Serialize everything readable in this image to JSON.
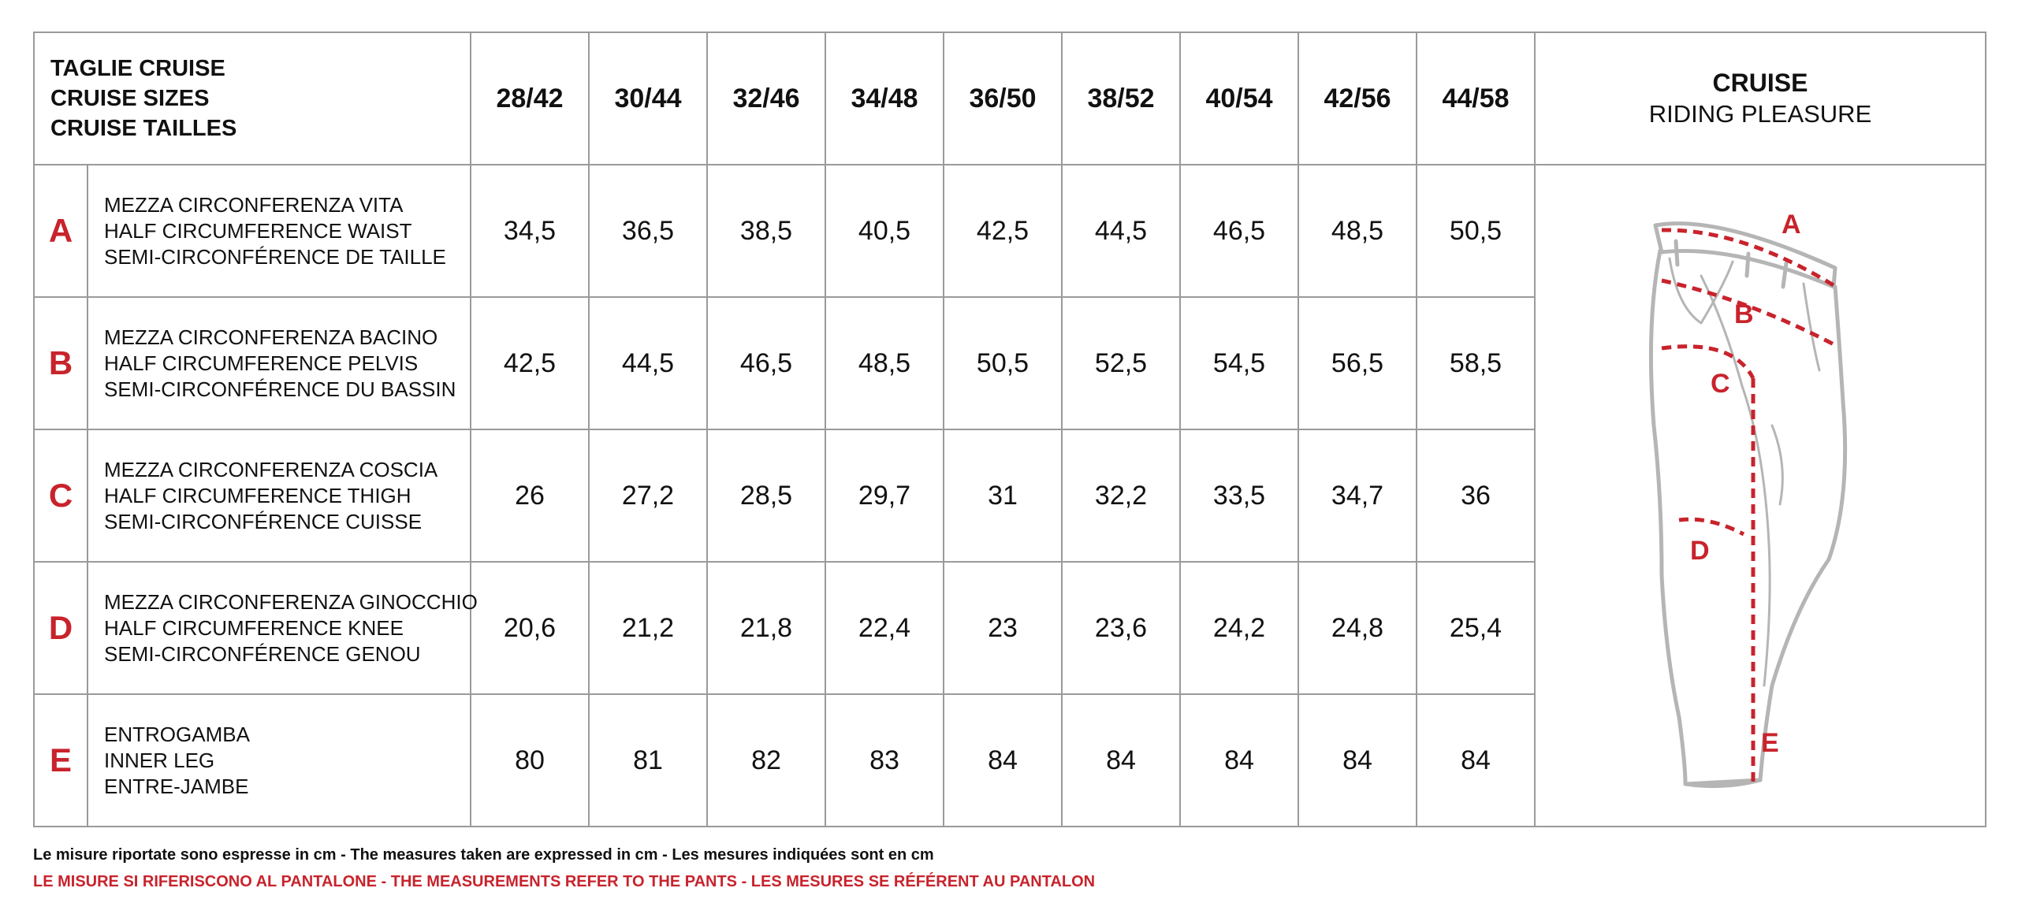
{
  "header": {
    "title_lines": [
      "TAGLIE CRUISE",
      "CRUISE SIZES",
      "CRUISE TAILLES"
    ],
    "sizes": [
      "28/42",
      "30/44",
      "32/46",
      "34/48",
      "36/50",
      "38/52",
      "40/54",
      "42/56",
      "44/58"
    ],
    "brand_name": "CRUISE",
    "brand_tagline": "RIDING PLEASURE"
  },
  "rows": [
    {
      "letter": "A",
      "labels": [
        "MEZZA CIRCONFERENZA VITA",
        "HALF CIRCUMFERENCE WAIST",
        "SEMI-CIRCONFÉRENCE DE TAILLE"
      ],
      "values": [
        "34,5",
        "36,5",
        "38,5",
        "40,5",
        "42,5",
        "44,5",
        "46,5",
        "48,5",
        "50,5"
      ]
    },
    {
      "letter": "B",
      "labels": [
        "MEZZA CIRCONFERENZA BACINO",
        "HALF CIRCUMFERENCE PELVIS",
        "SEMI-CIRCONFÉRENCE DU BASSIN"
      ],
      "values": [
        "42,5",
        "44,5",
        "46,5",
        "48,5",
        "50,5",
        "52,5",
        "54,5",
        "56,5",
        "58,5"
      ]
    },
    {
      "letter": "C",
      "labels": [
        "MEZZA CIRCONFERENZA COSCIA",
        "HALF CIRCUMFERENCE THIGH",
        "SEMI-CIRCONFÉRENCE CUISSE"
      ],
      "values": [
        "26",
        "27,2",
        "28,5",
        "29,7",
        "31",
        "32,2",
        "33,5",
        "34,7",
        "36"
      ]
    },
    {
      "letter": "D",
      "labels": [
        "MEZZA CIRCONFERENZA GINOCCHIO",
        "HALF CIRCUMFERENCE KNEE",
        "SEMI-CIRCONFÉRENCE GENOU"
      ],
      "values": [
        "20,6",
        "21,2",
        "21,8",
        "22,4",
        "23",
        "23,6",
        "24,2",
        "24,8",
        "25,4"
      ]
    },
    {
      "letter": "E",
      "labels": [
        "ENTROGAMBA",
        "INNER LEG",
        "ENTRE-JAMBE"
      ],
      "values": [
        "80",
        "81",
        "82",
        "83",
        "84",
        "84",
        "84",
        "84",
        "84"
      ]
    }
  ],
  "diagram_labels": [
    "A",
    "B",
    "C",
    "D",
    "E"
  ],
  "footer": {
    "note": "Le misure riportate sono espresse in cm - The measures taken are expressed in cm - Les mesures indiquées sont en cm",
    "warning": "LE MISURE SI RIFERISCONO AL PANTALONE - THE MEASUREMENTS REFER TO THE PANTS - LES MESURES SE RÉFÉRENT AU PANTALON"
  },
  "colors": {
    "accent_red": "#c8232c",
    "grid_gray": "#9a9a9a",
    "pants_outline": "#b5b5b5"
  }
}
